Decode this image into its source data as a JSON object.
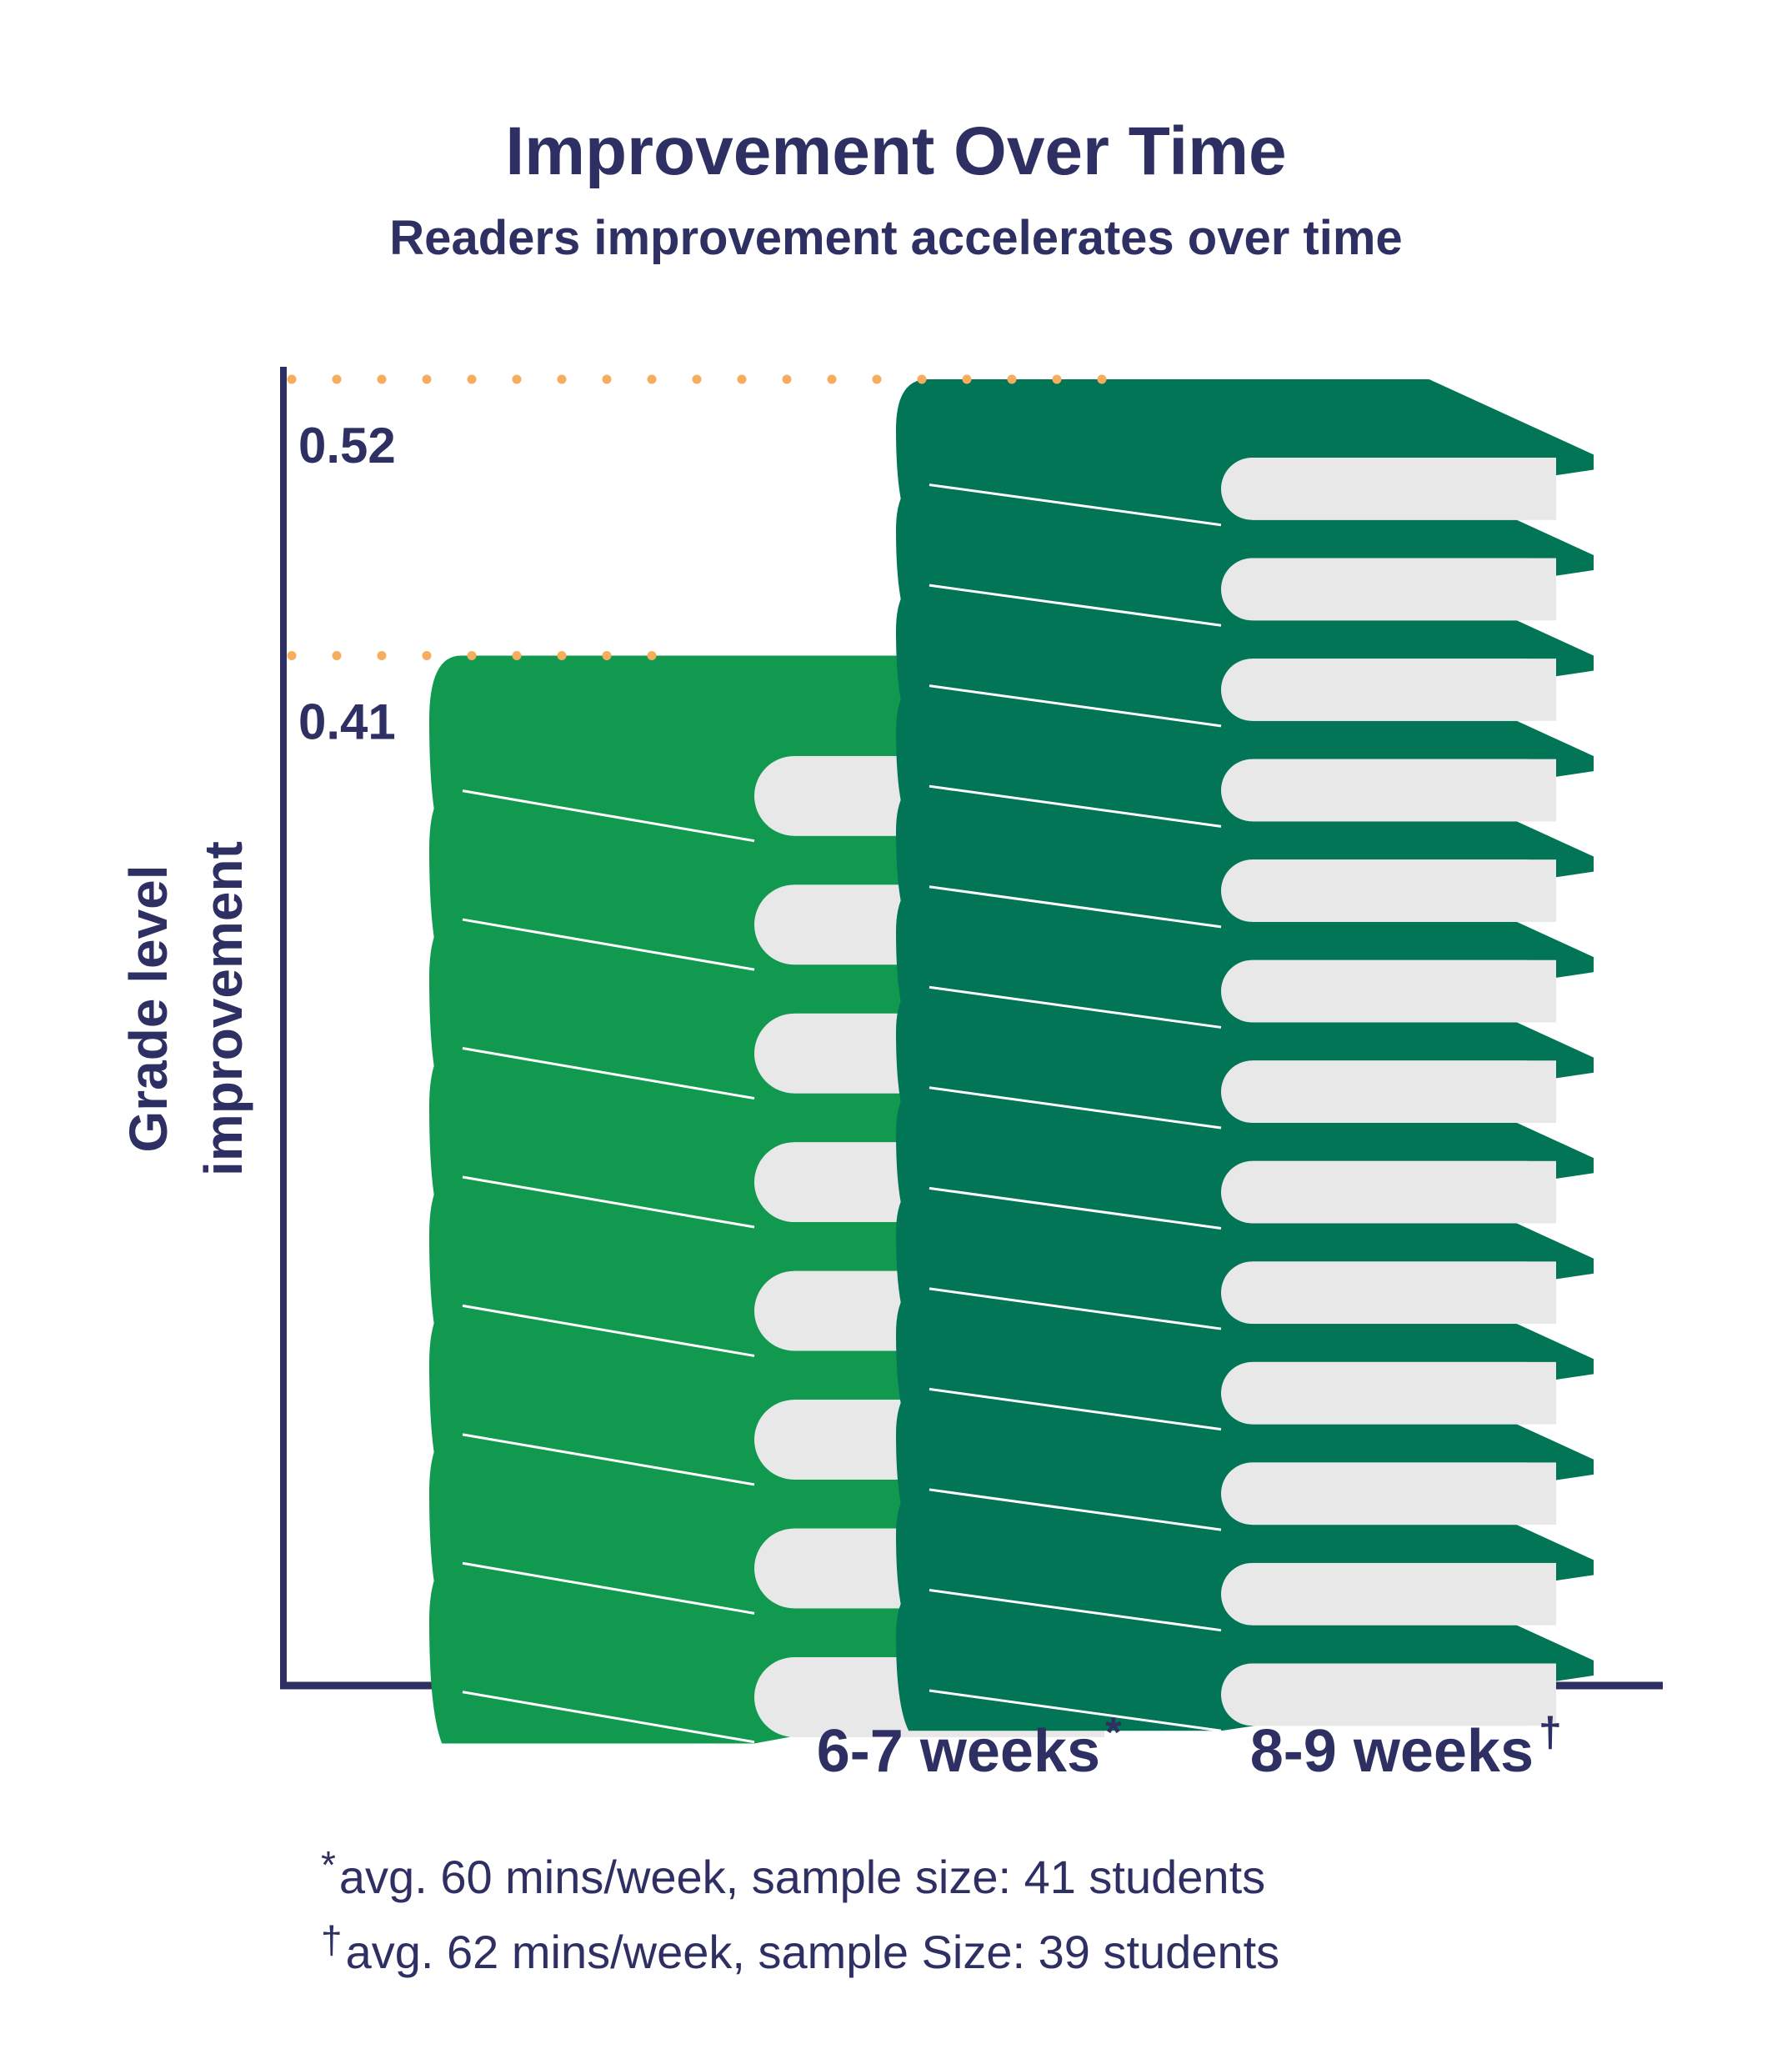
{
  "chart_data": {
    "type": "bar",
    "title": "Improvement Over Time",
    "subtitle": "Readers improvement accelerates over time",
    "ylabel_line1": "Grade level",
    "ylabel_line2": "improvement",
    "categories": [
      "6-7 weeks",
      "8-9 weeks"
    ],
    "category_marks": [
      "*",
      "†"
    ],
    "values": [
      0.41,
      0.52
    ],
    "value_labels": [
      "0.41",
      "0.52"
    ],
    "ylim": [
      0,
      0.52
    ],
    "colors": {
      "bar1": "#119a4f",
      "bar2": "#027556",
      "pages": "#e8e8e8",
      "guide": "#f6ad5e",
      "axis": "#2e2f63"
    },
    "grid": false,
    "legend": "none"
  },
  "footnotes": [
    {
      "mark": "*",
      "text": "avg. 60 mins/week, sample size: 41 students"
    },
    {
      "mark": "†",
      "text": "avg. 62 mins/week, sample Size: 39 students"
    }
  ]
}
